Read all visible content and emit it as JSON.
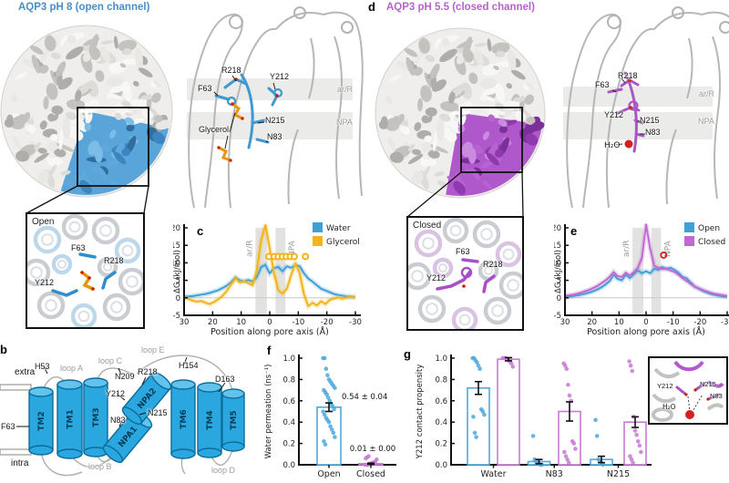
{
  "panel_a": {
    "title": "AQP3 pH 8 (open channel)",
    "title_color": "#4A8EC6",
    "ribbon": {
      "r218": "R218",
      "y212": "Y212",
      "f63": "F63",
      "n215": "N215",
      "glycerol": "Glycerol",
      "n83": "N83",
      "arr": "ar/R",
      "npa": "NPA"
    },
    "inset": {
      "title": "Open",
      "f63": "F63",
      "r218": "R218",
      "y212": "Y212"
    }
  },
  "panel_d": {
    "letter": "d",
    "title": "AQP3 pH 5.5 (closed channel)",
    "title_color": "#B465C8",
    "ribbon": {
      "f63": "F63",
      "r218": "R218",
      "y212": "Y212",
      "n215": "N215",
      "n83": "N83",
      "h2o": "H₂O",
      "arr": "ar/R",
      "npa": "NPA"
    },
    "inset": {
      "title": "Closed",
      "f63": "F63",
      "r218": "R218",
      "y212": "Y212"
    }
  },
  "panel_b": {
    "letter": "b",
    "extra": "extra",
    "intra": "intra",
    "tm": {
      "tm1": "TM1",
      "tm2": "TM2",
      "tm3": "TM3",
      "tm4": "TM4",
      "tm5": "TM5",
      "tm6": "TM6",
      "npa1": "NPA1",
      "npa2": "NPA2"
    },
    "loops": {
      "a": "loop A",
      "b": "loop B",
      "c": "loop C",
      "d": "loop D",
      "e": "loop E"
    },
    "residues": {
      "h53": "H53",
      "f63": "F63",
      "n83": "N83",
      "y212": "Y212",
      "n209": "N209",
      "r218": "R218",
      "n215": "N215",
      "h154": "H154",
      "d163": "D163"
    }
  },
  "panel_c": {
    "letter": "c"
  },
  "panel_e": {
    "letter": "e"
  },
  "panel_f": {
    "letter": "f"
  },
  "panel_g": {
    "letter": "g",
    "inset": {
      "y212": "Y212",
      "n215": "N215",
      "n83": "N83",
      "h2o": "H₂O"
    }
  },
  "chart_data": [
    {
      "id": "c",
      "type": "line",
      "xlabel": "Position along pore axis (Å)",
      "ylabel": "ΔG (kJ/mol)",
      "xlim": [
        30,
        -30
      ],
      "ylim": [
        -5,
        20
      ],
      "xticks": [
        30,
        20,
        10,
        0,
        -10,
        -20,
        -30
      ],
      "yticks": [
        -5,
        0,
        5,
        10,
        15,
        20
      ],
      "bands": [
        {
          "label": "ar/R",
          "x": [
            5,
            1
          ]
        },
        {
          "label": "NPA",
          "x": [
            -2,
            -5.5
          ]
        }
      ],
      "x": [
        30,
        28.5,
        27,
        25.5,
        24,
        22.5,
        21,
        19.5,
        18,
        16.5,
        15,
        13.5,
        12,
        10.5,
        9,
        7.5,
        6,
        4.5,
        3,
        1.5,
        0,
        -1.5,
        -3,
        -4.5,
        -6,
        -7.5,
        -9,
        -10.5,
        -12,
        -13.5,
        -15,
        -16.5,
        -18,
        -19.5,
        -21,
        -22.5,
        -24,
        -25.5,
        -27,
        -28.5,
        -30
      ],
      "series": [
        {
          "name": "Water",
          "color": "#3FA0D8",
          "y": [
            0.3,
            0.4,
            0.5,
            0.7,
            0.9,
            1.1,
            1.4,
            1.8,
            2.2,
            2.8,
            3.5,
            4.5,
            5.8,
            5.0,
            4.7,
            5.1,
            4.6,
            6.0,
            8.8,
            9.4,
            7.0,
            8.5,
            8.8,
            7.6,
            9.0,
            8.6,
            9.4,
            9.0,
            7.0,
            5.5,
            4.6,
            3.6,
            2.6,
            2.1,
            1.6,
            1.1,
            0.8,
            0.6,
            0.4,
            0.3,
            0.2
          ]
        },
        {
          "name": "Glycerol",
          "color": "#F2B418",
          "y": [
            0.1,
            -0.3,
            -0.8,
            -1.1,
            -0.9,
            -1.4,
            -1.8,
            -1.2,
            -0.4,
            0.6,
            2.0,
            3.8,
            5.6,
            4.4,
            4.8,
            4.2,
            3.6,
            8.0,
            16.5,
            20.8,
            14.0,
            7.0,
            2.2,
            1.2,
            2.6,
            6.5,
            9.8,
            7.0,
            1.0,
            -2.4,
            -1.4,
            -2.2,
            -1.0,
            -1.8,
            -0.6,
            -0.2,
            0.1,
            -0.2,
            0.1,
            0.2,
            0.1
          ]
        }
      ],
      "markers": {
        "label": "glycerol sites (cryo-EM)",
        "color": "#F2B418",
        "fill": "#fff",
        "y": 11.8,
        "x": [
          0.3,
          -1.6,
          -3,
          -4.4,
          -5.8,
          -7.2,
          -8.6,
          -12.5
        ]
      }
    },
    {
      "id": "e",
      "type": "line",
      "xlabel": "Position along pore axis (Å)",
      "ylabel": "ΔG (kJ/mol)",
      "xlim": [
        30,
        -30
      ],
      "ylim": [
        -5,
        20
      ],
      "xticks": [
        30,
        20,
        10,
        0,
        -10,
        -20,
        -30
      ],
      "yticks": [
        -5,
        0,
        5,
        10,
        15,
        20
      ],
      "bands": [
        {
          "label": "ar/R",
          "x": [
            5,
            1
          ]
        },
        {
          "label": "NPA",
          "x": [
            -2,
            -5.5
          ]
        }
      ],
      "x": [
        30,
        28.5,
        27,
        25.5,
        24,
        22.5,
        21,
        19.5,
        18,
        16.5,
        15,
        13.5,
        12,
        10.5,
        9,
        7.5,
        6,
        4.5,
        3,
        1.5,
        0,
        -1.5,
        -3,
        -4.5,
        -6,
        -7.5,
        -9,
        -10.5,
        -12,
        -13.5,
        -15,
        -16.5,
        -18,
        -19.5,
        -21,
        -22.5,
        -24,
        -25.5,
        -27,
        -28.5,
        -30
      ],
      "series": [
        {
          "name": "Open",
          "color": "#3FA0D8",
          "y": [
            0.2,
            0.3,
            0.5,
            0.7,
            0.9,
            1.2,
            1.5,
            1.9,
            2.4,
            3.0,
            3.8,
            4.8,
            6.6,
            5.4,
            5.0,
            6.6,
            5.6,
            6.8,
            7.8,
            7.0,
            7.6,
            7.0,
            8.3,
            8.0,
            8.8,
            8.2,
            8.6,
            8.0,
            7.2,
            6.0,
            5.6,
            4.4,
            3.2,
            2.6,
            2.0,
            1.5,
            1.1,
            0.8,
            0.6,
            0.4,
            0.3
          ]
        },
        {
          "name": "Closed",
          "color": "#C06AD0",
          "y": [
            0.5,
            0.7,
            0.9,
            1.2,
            1.5,
            1.9,
            2.3,
            2.8,
            3.4,
            4.2,
            5.0,
            6.0,
            7.4,
            6.2,
            6.0,
            7.2,
            6.4,
            7.4,
            8.6,
            11.5,
            21.0,
            14.0,
            9.2,
            8.6,
            8.2,
            8.4,
            7.8,
            7.4,
            6.6,
            5.6,
            4.8,
            4.0,
            3.2,
            2.7,
            2.2,
            1.8,
            1.4,
            1.1,
            0.9,
            0.7,
            0.5
          ]
        }
      ],
      "markers": {
        "label": "H₂O site (cryo-EM)",
        "color": "#CE2B24",
        "fill": "none",
        "y": 12.2,
        "x": [
          -6.5
        ]
      }
    },
    {
      "id": "f",
      "type": "bar",
      "ylabel": "Water permeation (ns⁻¹)",
      "ylim": [
        0,
        1
      ],
      "yticks": [
        0,
        0.2,
        0.4,
        0.6,
        0.8,
        1
      ],
      "categories": [
        "Open",
        "Closed"
      ],
      "values": [
        0.54,
        0.01
      ],
      "errors": [
        0.04,
        0.005
      ],
      "annotations": [
        "0.54 ± 0.04",
        "0.01 ± 0.00"
      ],
      "colors": [
        "#4FA8DC",
        "#C779D4"
      ],
      "points": [
        [
          1.0,
          1.0,
          0.9,
          0.84,
          0.8,
          0.78,
          0.76,
          0.74,
          0.72,
          0.7,
          0.68,
          0.66,
          0.63,
          0.6,
          0.57,
          0.55,
          0.52,
          0.5,
          0.47,
          0.44,
          0.42,
          0.4,
          0.36,
          0.33,
          0.3,
          0.26,
          0.22,
          0.19
        ],
        [
          0.0,
          0.0,
          0.0,
          0.01,
          0.01,
          0.02,
          0.02,
          0.03,
          0.05,
          0.06,
          0.07,
          0.08
        ]
      ]
    },
    {
      "id": "g",
      "type": "bar",
      "ylabel": "Y212 contact propensity",
      "ylim": [
        0,
        1
      ],
      "yticks": [
        0,
        0.2,
        0.4,
        0.6,
        0.8,
        1
      ],
      "categories": [
        "Water",
        "N83",
        "N215"
      ],
      "series": [
        {
          "name": "Open",
          "color": "#4FA8DC",
          "values": [
            0.72,
            0.03,
            0.05
          ],
          "errors": [
            0.06,
            0.02,
            0.03
          ],
          "points": [
            [
              1.0,
              1.0,
              0.98,
              0.96,
              0.93,
              0.9,
              0.52,
              0.5,
              0.47,
              0.45,
              0.3,
              0.26
            ],
            [
              0.27,
              0.05,
              0.03,
              0.02,
              0.01,
              0.0,
              0.0
            ],
            [
              0.42,
              0.27,
              0.05,
              0.03,
              0.02,
              0.0
            ]
          ]
        },
        {
          "name": "Closed",
          "color": "#C779D4",
          "values": [
            0.99,
            0.5,
            0.4
          ],
          "errors": [
            0.015,
            0.09,
            0.05
          ],
          "points": [
            [
              1.0,
              1.0,
              1.0,
              0.99,
              0.98,
              0.97,
              0.95,
              0.92
            ],
            [
              0.95,
              0.93,
              0.9,
              0.75,
              0.65,
              0.6,
              0.22,
              0.2,
              0.15,
              0.12,
              0.08,
              0.05,
              0.02
            ],
            [
              0.97,
              0.93,
              0.88,
              0.45,
              0.32,
              0.28,
              0.22,
              0.18,
              0.12,
              0.08,
              0.05,
              0.02
            ]
          ]
        }
      ]
    }
  ]
}
